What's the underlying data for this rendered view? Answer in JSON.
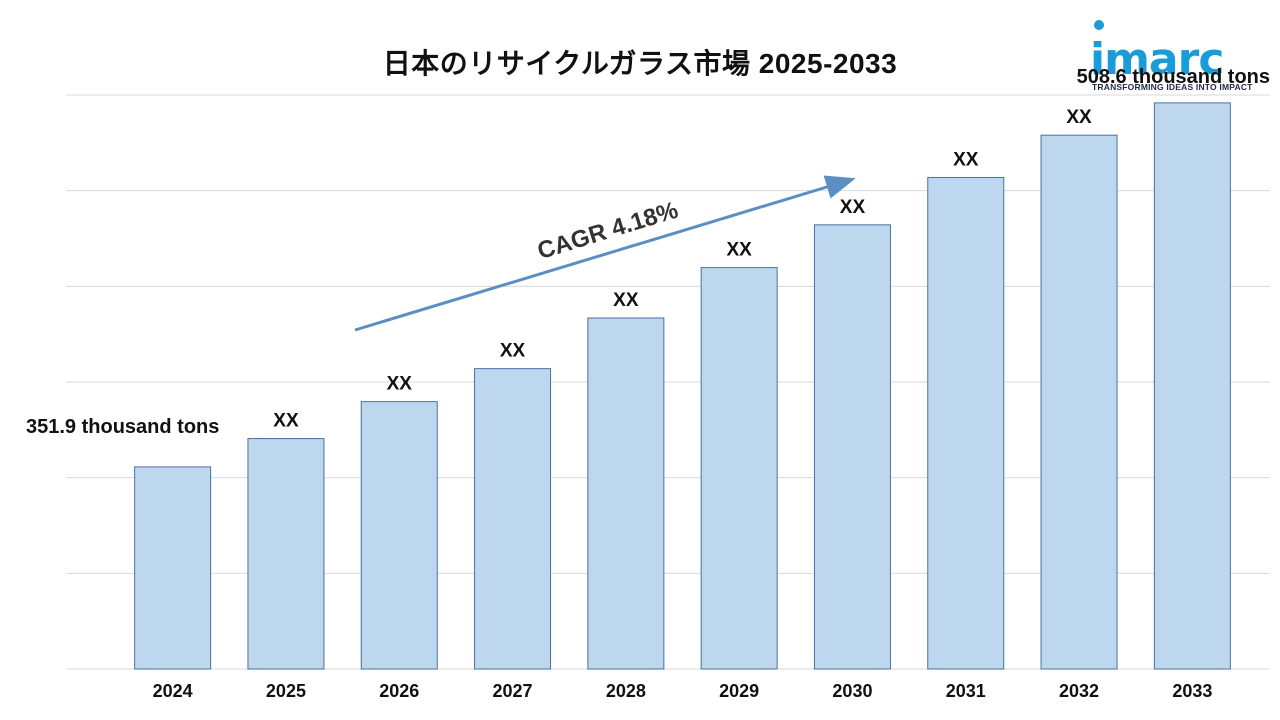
{
  "title": "日本のリサイクルガラス市場 2025-2033",
  "logo": {
    "word": "imarc",
    "tagline": "TRANSFORMING IDEAS INTO IMPACT"
  },
  "colors": {
    "bar_fill": "#bdd7ee",
    "bar_stroke": "#4a6fa5",
    "grid": "#d9d9d9",
    "arrow": "#5b8fc4",
    "text": "#111111"
  },
  "chart_data": {
    "type": "bar",
    "categories": [
      "2024",
      "2025",
      "2026",
      "2027",
      "2028",
      "2029",
      "2030",
      "2031",
      "2032",
      "2033"
    ],
    "values": [
      351.9,
      364.1,
      380.0,
      394.2,
      416.0,
      437.7,
      456.1,
      476.5,
      494.7,
      508.6
    ],
    "data_labels": [
      "351.9 thousand tons",
      "XX",
      "XX",
      "XX",
      "XX",
      "XX",
      "XX",
      "XX",
      "XX",
      "508.6 thousand tons"
    ],
    "ylim": [
      264.9,
      512.0
    ],
    "grid": true,
    "annotation": "CAGR 4.18%"
  }
}
